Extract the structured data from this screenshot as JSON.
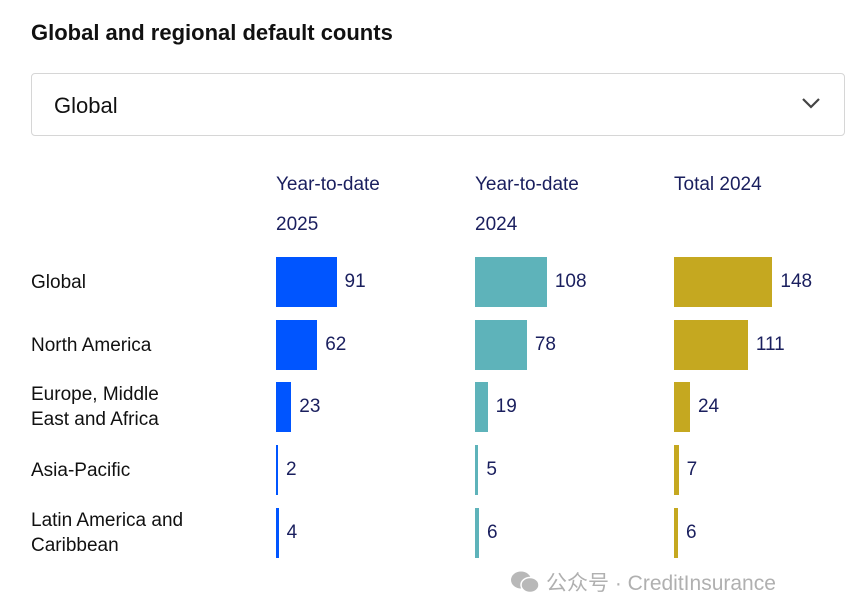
{
  "title": "Global and regional default counts",
  "dropdown": {
    "selected": "Global",
    "icon": "chevron-down-icon"
  },
  "watermark": "公众号 · CreditInsurance",
  "chart_data": {
    "type": "bar",
    "orientation": "horizontal",
    "title": "Global and regional default counts",
    "categories": [
      "Global",
      "North America",
      "Europe, Middle East and Africa",
      "Asia-Pacific",
      "Latin America and Caribbean"
    ],
    "category_lines": [
      [
        "Global"
      ],
      [
        "North America"
      ],
      [
        "Europe, Middle",
        "East and Africa"
      ],
      [
        "Asia-Pacific"
      ],
      [
        "Latin America and",
        "Caribbean"
      ]
    ],
    "series": [
      {
        "name": "Year-to-date 2025",
        "name_lines": [
          "Year-to-date",
          "2025"
        ],
        "color": "#0055ff",
        "values": [
          91,
          62,
          23,
          2,
          4
        ]
      },
      {
        "name": "Year-to-date 2024",
        "name_lines": [
          "Year-to-date",
          "2024"
        ],
        "color": "#5eb3ba",
        "values": [
          108,
          78,
          19,
          5,
          6
        ]
      },
      {
        "name": "Total 2024",
        "name_lines": [
          "Total 2024",
          ""
        ],
        "color": "#c5a820",
        "values": [
          148,
          111,
          24,
          7,
          6
        ]
      }
    ]
  }
}
